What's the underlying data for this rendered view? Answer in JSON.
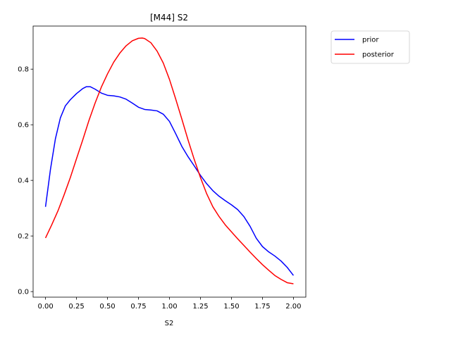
{
  "chart_data": {
    "type": "line",
    "title": "[M44] S2",
    "xlabel": "S2",
    "ylabel": "",
    "xlim": [
      -0.1,
      2.1
    ],
    "ylim": [
      -0.02,
      0.955
    ],
    "xticks": [
      0.0,
      0.25,
      0.5,
      0.75,
      1.0,
      1.25,
      1.5,
      1.75,
      2.0
    ],
    "xtick_labels": [
      "0.00",
      "0.25",
      "0.50",
      "0.75",
      "1.00",
      "1.25",
      "1.50",
      "1.75",
      "2.00"
    ],
    "yticks": [
      0.0,
      0.2,
      0.4,
      0.6,
      0.8
    ],
    "ytick_labels": [
      "0.0",
      "0.2",
      "0.4",
      "0.6",
      "0.8"
    ],
    "grid": false,
    "legend_position": "outside-top-right",
    "series": [
      {
        "name": "prior",
        "color": "#0000ff",
        "x": [
          0.0,
          0.04,
          0.08,
          0.12,
          0.16,
          0.2,
          0.25,
          0.3,
          0.33,
          0.36,
          0.4,
          0.45,
          0.5,
          0.55,
          0.6,
          0.65,
          0.7,
          0.75,
          0.8,
          0.85,
          0.9,
          0.95,
          1.0,
          1.05,
          1.1,
          1.15,
          1.2,
          1.25,
          1.3,
          1.35,
          1.4,
          1.45,
          1.5,
          1.55,
          1.6,
          1.65,
          1.7,
          1.75,
          1.8,
          1.85,
          1.9,
          1.95,
          2.0
        ],
        "y": [
          0.305,
          0.44,
          0.55,
          0.625,
          0.668,
          0.69,
          0.712,
          0.73,
          0.737,
          0.737,
          0.728,
          0.714,
          0.706,
          0.704,
          0.7,
          0.692,
          0.678,
          0.663,
          0.655,
          0.653,
          0.65,
          0.638,
          0.612,
          0.568,
          0.522,
          0.485,
          0.452,
          0.418,
          0.388,
          0.363,
          0.343,
          0.327,
          0.312,
          0.295,
          0.27,
          0.235,
          0.192,
          0.162,
          0.143,
          0.128,
          0.11,
          0.087,
          0.058
        ]
      },
      {
        "name": "posterior",
        "color": "#ff0000",
        "x": [
          0.0,
          0.05,
          0.1,
          0.15,
          0.2,
          0.25,
          0.3,
          0.35,
          0.4,
          0.45,
          0.5,
          0.55,
          0.6,
          0.65,
          0.7,
          0.75,
          0.78,
          0.8,
          0.85,
          0.9,
          0.95,
          1.0,
          1.05,
          1.1,
          1.15,
          1.2,
          1.25,
          1.3,
          1.35,
          1.4,
          1.45,
          1.5,
          1.55,
          1.6,
          1.65,
          1.7,
          1.75,
          1.8,
          1.85,
          1.9,
          1.95,
          2.0
        ],
        "y": [
          0.193,
          0.24,
          0.29,
          0.348,
          0.41,
          0.478,
          0.545,
          0.615,
          0.678,
          0.735,
          0.783,
          0.825,
          0.858,
          0.884,
          0.902,
          0.911,
          0.912,
          0.91,
          0.895,
          0.865,
          0.822,
          0.763,
          0.693,
          0.62,
          0.545,
          0.475,
          0.41,
          0.352,
          0.305,
          0.27,
          0.24,
          0.215,
          0.19,
          0.166,
          0.142,
          0.119,
          0.097,
          0.077,
          0.058,
          0.044,
          0.032,
          0.028
        ]
      }
    ]
  }
}
